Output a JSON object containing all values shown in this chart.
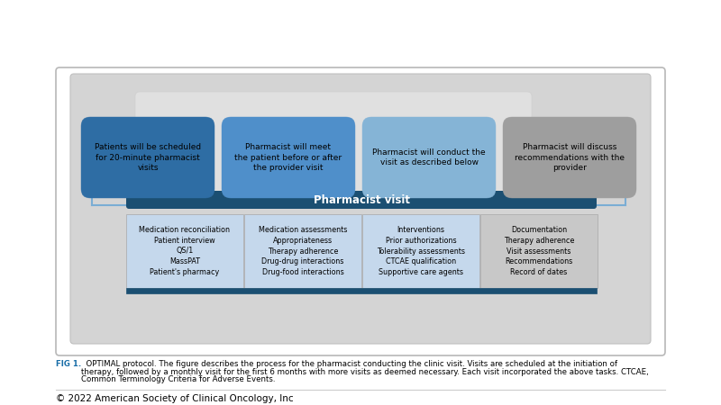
{
  "bg_color": "#ffffff",
  "outer_border_color": "#b0b0b0",
  "inner_bg_color": "#d4d4d4",
  "inner_white_color": "#e8e8e8",
  "top_boxes": [
    {
      "label": "Patients will be scheduled\nfor 20-minute pharmacist\nvisits",
      "color": "#2e6da4",
      "text_color": "#000000"
    },
    {
      "label": "Pharmacist will meet\nthe patient before or after\nthe provider visit",
      "color": "#4f8fca",
      "text_color": "#000000"
    },
    {
      "label": "Pharmacist will conduct the\nvisit as described below",
      "color": "#85b4d6",
      "text_color": "#000000"
    },
    {
      "label": "Pharmacist will discuss\nrecommendations with the\nprovider",
      "color": "#9e9e9e",
      "text_color": "#000000"
    }
  ],
  "pharmacist_visit_bar_color": "#1b4f72",
  "pharmacist_visit_label": "Pharmacist visit",
  "pharmacist_visit_text_color": "#ffffff",
  "bottom_boxes": [
    {
      "label": "Medication reconciliation\nPatient interview\nQS/1\nMassPAT\nPatient's pharmacy",
      "color": "#c5d8ec",
      "text_color": "#000000"
    },
    {
      "label": "Medication assessments\nAppropriateness\nTherapy adherence\nDrug-drug interactions\nDrug-food interactions",
      "color": "#c5d8ec",
      "text_color": "#000000"
    },
    {
      "label": "Interventions\nPrior authorizations\nTolerability assessments\nCTCAE qualification\nSupportive care agents",
      "color": "#c5d8ec",
      "text_color": "#000000"
    },
    {
      "label": "Documentation\nTherapy adherence\nVisit assessments\nRecommendations\nRecord of dates",
      "color": "#c8c8c8",
      "text_color": "#000000"
    }
  ],
  "connector_color": "#7aadd4",
  "fig1_label": "FIG 1.",
  "fig1_text": "  OPTIMAL protocol. The figure describes the process for the pharmacist conducting the clinic visit. Visits are scheduled at the initiation of therapy, followed by a monthly visit for the first 6 months with more visits as deemed necessary. Each visit incorporated the above tasks. CTCAE, Common Terminology Criteria for Adverse Events.",
  "copyright": "© 2022 American Society of Clinical Oncology, Inc",
  "fig1_label_color": "#1a6ea8",
  "fig1_text_color": "#000000",
  "copyright_color": "#000000"
}
